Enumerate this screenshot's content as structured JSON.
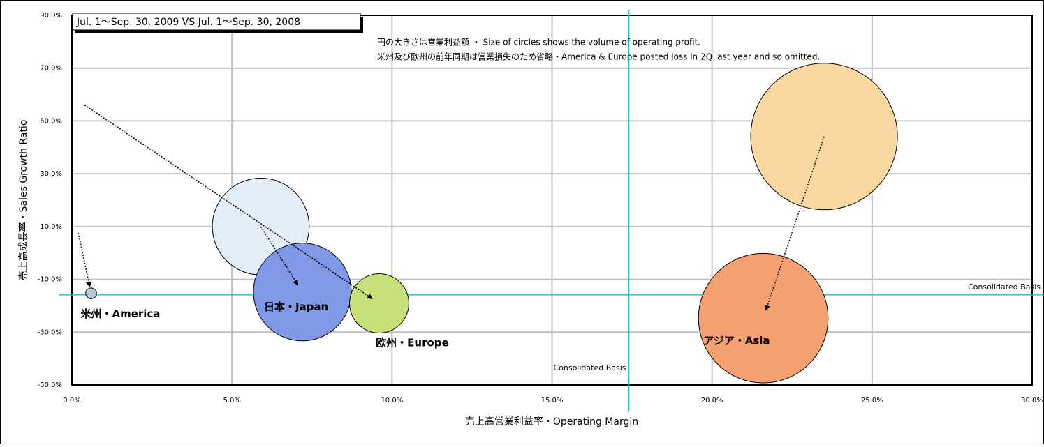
{
  "chart_data": {
    "type": "bubble",
    "title": "Jul. 1～Sep. 30, 2009 VS Jul. 1～Sep. 30, 2008",
    "annotations": [
      "円の大きさは営業利益額 ・ Size of circles shows the volume of operating profit.",
      "米州及び欧州の前年同期は営業損失のため省略・America & Europe posted loss in 2Q last year and so omitted."
    ],
    "x_label": "売上高営業利益率・Operating Margin",
    "y_label": "売上高成長率・Sales Growth Ratio",
    "categories": [
      "米州・America",
      "日本・Japan",
      "欧州・Europe",
      "アジア・Asia"
    ],
    "series": [
      {
        "x": [
          0.2,
          5.9,
          0.4,
          23.5
        ],
        "values": [
          7.6,
          10.0,
          56.0,
          44.1
        ],
        "sizes": [
          null,
          48,
          null,
          110
        ],
        "colors": [
          null,
          "#e4eef9",
          null,
          "#fcd9a0"
        ]
      },
      {
        "x": [
          0.6,
          7.2,
          9.6,
          21.6
        ],
        "values": [
          -15.3,
          -14.8,
          -19.1,
          -24.7
        ],
        "sizes": [
          0.6,
          49,
          18,
          86
        ],
        "colors": [
          "#b4c6dc",
          "#8098e6",
          "#c8e07a",
          "#f4a070"
        ]
      }
    ],
    "reference_lines": {
      "x": 17.4,
      "y": -15.9,
      "label": "Consolidated Basis",
      "color": "#22c4dc"
    },
    "xlim": [
      0,
      30
    ],
    "xticks": [
      {
        "value": 0,
        "label": "0.0%"
      },
      {
        "value": 5,
        "label": "5.0%"
      },
      {
        "value": 10,
        "label": "10.0%"
      },
      {
        "value": 15,
        "label": "15.0%"
      },
      {
        "value": 20,
        "label": "20.0%"
      },
      {
        "value": 25,
        "label": "25.0%"
      },
      {
        "value": 30,
        "label": "30.0%"
      }
    ],
    "ylim": [
      -50,
      90
    ],
    "yticks": [
      {
        "value": -50,
        "label": "-50.0%"
      },
      {
        "value": -30,
        "label": "-30.0%"
      },
      {
        "value": -10,
        "label": "-10.0%"
      },
      {
        "value": 10,
        "label": "10.0%"
      },
      {
        "value": 30,
        "label": "30.0%"
      },
      {
        "value": 50,
        "label": "50.0%"
      },
      {
        "value": 70,
        "label": "70.0%"
      },
      {
        "value": 90,
        "label": "90.0%"
      }
    ],
    "grid": true
  }
}
